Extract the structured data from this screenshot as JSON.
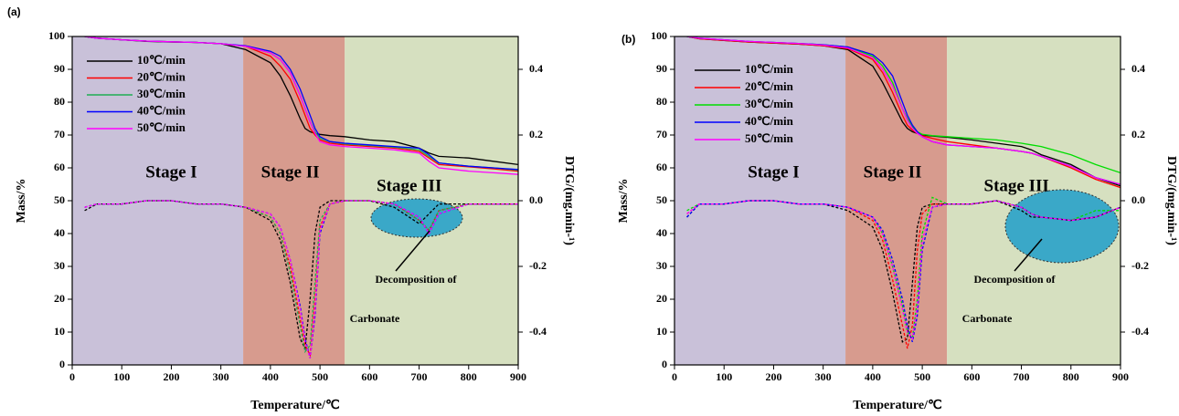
{
  "chart_data": [
    {
      "type": "line",
      "panel_label": "(a)",
      "x_label": "Temperature/℃",
      "y_label": "Mass/%",
      "y2_label": "DTG/(mg.min-¹)",
      "annotation": [
        "Decomposition of",
        "Carbonate"
      ],
      "stages": [
        {
          "label": "Stage I",
          "from": 0,
          "to": 345,
          "color": "#c9c1d9"
        },
        {
          "label": "Stage II",
          "from": 345,
          "to": 550,
          "color": "#d79b8e"
        },
        {
          "label": "Stage III",
          "from": 550,
          "to": 900,
          "color": "#d6e0c0"
        }
      ],
      "xlim": [
        0,
        900
      ],
      "xticks": [
        0,
        100,
        200,
        300,
        400,
        500,
        600,
        700,
        800,
        900
      ],
      "ylim": [
        0,
        100
      ],
      "yticks": [
        0,
        10,
        20,
        30,
        40,
        50,
        60,
        70,
        80,
        90,
        100
      ],
      "y2lim": [
        -0.5,
        0.5
      ],
      "y2ticks": [
        -0.4,
        -0.2,
        {
          "value": 0,
          "label": "0.0"
        },
        0.2,
        0.4
      ],
      "x": [
        25,
        50,
        100,
        150,
        200,
        250,
        300,
        350,
        400,
        420,
        440,
        460,
        470,
        480,
        490,
        500,
        520,
        550,
        600,
        650,
        700,
        720,
        740,
        800,
        850,
        900
      ],
      "series": [
        {
          "name": "10℃/min",
          "color": "#000000",
          "values": [
            100,
            99.5,
            99,
            98.5,
            98.3,
            98.2,
            97.8,
            96,
            92,
            88,
            82,
            75,
            72,
            71,
            70.5,
            70.2,
            69.8,
            69.5,
            68.5,
            68,
            66,
            64.5,
            63.5,
            63,
            62,
            61
          ],
          "dtg": [
            -0.03,
            -0.01,
            -0.01,
            0,
            0,
            -0.01,
            -0.01,
            -0.02,
            -0.06,
            -0.12,
            -0.25,
            -0.42,
            -0.45,
            -0.3,
            -0.1,
            -0.02,
            0,
            0,
            0,
            -0.02,
            -0.07,
            -0.04,
            -0.01,
            -0.01,
            -0.01,
            -0.01
          ]
        },
        {
          "name": "20℃/min",
          "color": "#ff0000",
          "values": [
            100,
            99.5,
            99,
            98.6,
            98.4,
            98.2,
            97.8,
            97,
            94,
            91,
            87,
            80,
            76,
            72,
            70,
            68.5,
            67.5,
            67,
            66.5,
            66,
            65,
            63,
            61,
            60.3,
            59.7,
            59
          ],
          "dtg": [
            -0.02,
            -0.01,
            -0.01,
            0,
            0,
            -0.01,
            -0.01,
            -0.02,
            -0.05,
            -0.1,
            -0.2,
            -0.36,
            -0.44,
            -0.47,
            -0.3,
            -0.08,
            -0.01,
            0,
            0,
            -0.01,
            -0.06,
            -0.09,
            -0.03,
            -0.01,
            -0.01,
            -0.01
          ]
        },
        {
          "name": "30℃/min",
          "color": "#1fae52",
          "values": [
            100,
            99.5,
            99,
            98.6,
            98.4,
            98.2,
            97.8,
            97,
            95,
            93,
            89,
            82,
            78,
            74,
            71,
            69,
            68,
            67.3,
            66.8,
            66.3,
            65.5,
            63.5,
            61.5,
            60.5,
            60,
            59.3
          ],
          "dtg": [
            -0.02,
            -0.01,
            -0.01,
            0,
            0,
            -0.01,
            -0.01,
            -0.02,
            -0.05,
            -0.1,
            -0.22,
            -0.38,
            -0.46,
            -0.44,
            -0.25,
            -0.06,
            -0.01,
            0,
            0,
            -0.01,
            -0.06,
            -0.09,
            -0.03,
            -0.01,
            -0.01,
            -0.01
          ]
        },
        {
          "name": "40℃/min",
          "color": "#0000ff",
          "values": [
            100,
            99.5,
            99,
            98.6,
            98.4,
            98.2,
            97.8,
            97.2,
            95.5,
            94,
            90,
            84,
            80,
            76,
            72,
            69.5,
            68,
            67.5,
            67,
            66.5,
            66,
            64,
            61.5,
            60.5,
            60,
            59.5
          ],
          "dtg": [
            -0.02,
            -0.01,
            -0.01,
            0,
            0,
            -0.01,
            -0.01,
            -0.02,
            -0.04,
            -0.08,
            -0.18,
            -0.32,
            -0.42,
            -0.48,
            -0.35,
            -0.1,
            -0.01,
            0,
            0,
            -0.01,
            -0.05,
            -0.1,
            -0.04,
            -0.01,
            -0.01,
            -0.01
          ]
        },
        {
          "name": "50℃/min",
          "color": "#ff00ff",
          "values": [
            100,
            99.5,
            99,
            98.6,
            98.4,
            98.2,
            97.8,
            97,
            95,
            93,
            89,
            82,
            78,
            74,
            70.5,
            68,
            67,
            66.5,
            66,
            65.5,
            64.5,
            62,
            60,
            59,
            58.5,
            58
          ],
          "dtg": [
            -0.02,
            -0.01,
            -0.01,
            0,
            0,
            -0.01,
            -0.01,
            -0.02,
            -0.04,
            -0.08,
            -0.18,
            -0.33,
            -0.43,
            -0.48,
            -0.33,
            -0.09,
            -0.01,
            0,
            0,
            -0.01,
            -0.05,
            -0.1,
            -0.04,
            -0.01,
            -0.01,
            -0.01
          ]
        }
      ]
    },
    {
      "type": "line",
      "panel_label": "(b)",
      "x_label": "Temperature/℃",
      "y_label": "Mass/%",
      "y2_label": "DTG/(mg.min-¹)",
      "annotation": [
        "Decomposition of",
        "Carbonate"
      ],
      "stages": [
        {
          "label": "Stage I",
          "from": 0,
          "to": 345,
          "color": "#c9c1d9"
        },
        {
          "label": "Stage II",
          "from": 345,
          "to": 550,
          "color": "#d79b8e"
        },
        {
          "label": "Stage III",
          "from": 550,
          "to": 900,
          "color": "#d6e0c0"
        }
      ],
      "xlim": [
        0,
        900
      ],
      "xticks": [
        0,
        100,
        200,
        300,
        400,
        500,
        600,
        700,
        800,
        900
      ],
      "ylim": [
        0,
        100
      ],
      "yticks": [
        0,
        10,
        20,
        30,
        40,
        50,
        60,
        70,
        80,
        90,
        100
      ],
      "y2lim": [
        -0.5,
        0.5
      ],
      "y2ticks": [
        -0.4,
        -0.2,
        {
          "value": 0,
          "label": "0.0"
        },
        0.2,
        0.4
      ],
      "x": [
        25,
        50,
        100,
        150,
        200,
        250,
        300,
        350,
        400,
        420,
        440,
        460,
        470,
        480,
        490,
        500,
        520,
        550,
        600,
        650,
        700,
        720,
        740,
        800,
        850,
        900
      ],
      "series": [
        {
          "name": "10℃/min",
          "color": "#000000",
          "values": [
            100,
            99.3,
            98.8,
            98.3,
            98,
            97.7,
            97.2,
            96,
            91,
            86,
            80,
            74,
            72,
            71,
            70.5,
            70,
            69.7,
            69.3,
            68.5,
            67.5,
            66.5,
            65.5,
            64,
            61,
            57,
            54.5
          ],
          "dtg": [
            -0.05,
            -0.01,
            -0.01,
            0,
            0,
            -0.01,
            -0.01,
            -0.03,
            -0.08,
            -0.15,
            -0.28,
            -0.43,
            -0.42,
            -0.25,
            -0.08,
            -0.02,
            -0.01,
            -0.01,
            -0.01,
            0,
            -0.03,
            -0.05,
            -0.05,
            -0.06,
            -0.05,
            -0.02
          ]
        },
        {
          "name": "20℃/min",
          "color": "#ff0000",
          "values": [
            100,
            99.3,
            98.8,
            98.3,
            98,
            97.7,
            97.2,
            96.3,
            93,
            89,
            83,
            76,
            73,
            71.5,
            70.5,
            69.8,
            69,
            68,
            67,
            66,
            65,
            64.5,
            63.5,
            60,
            56.5,
            54
          ],
          "dtg": [
            -0.04,
            -0.01,
            -0.01,
            0,
            0,
            -0.01,
            -0.01,
            -0.02,
            -0.06,
            -0.12,
            -0.24,
            -0.38,
            -0.45,
            -0.38,
            -0.15,
            -0.04,
            -0.01,
            -0.01,
            -0.01,
            0,
            -0.02,
            -0.04,
            -0.05,
            -0.06,
            -0.05,
            -0.02
          ]
        },
        {
          "name": "30℃/min",
          "color": "#00dd00",
          "values": [
            100,
            99.5,
            99,
            98.5,
            98.2,
            97.9,
            97.5,
            96.8,
            94,
            91,
            86,
            78,
            75,
            72.5,
            71,
            70.2,
            69.8,
            69.5,
            69,
            68.5,
            67.5,
            67,
            66.5,
            64,
            61,
            58.5
          ],
          "dtg": [
            -0.03,
            -0.01,
            -0.01,
            0,
            0,
            -0.01,
            -0.01,
            -0.02,
            -0.05,
            -0.1,
            -0.2,
            -0.32,
            -0.4,
            -0.42,
            -0.3,
            -0.1,
            0.01,
            -0.01,
            -0.01,
            0,
            -0.02,
            -0.04,
            -0.05,
            -0.06,
            -0.03,
            -0.03
          ]
        },
        {
          "name": "40℃/min",
          "color": "#0000ff",
          "values": [
            100,
            99.5,
            99,
            98.5,
            98.2,
            97.9,
            97.5,
            96.8,
            94.5,
            92,
            88,
            80,
            76,
            73,
            71,
            69.5,
            68,
            67,
            66.5,
            66,
            65,
            64.5,
            63.5,
            60.5,
            57,
            55
          ],
          "dtg": [
            -0.05,
            -0.01,
            -0.01,
            0,
            0,
            -0.01,
            -0.01,
            -0.02,
            -0.05,
            -0.09,
            -0.18,
            -0.3,
            -0.38,
            -0.43,
            -0.35,
            -0.15,
            -0.02,
            -0.01,
            -0.01,
            0,
            -0.02,
            -0.04,
            -0.05,
            -0.06,
            -0.05,
            -0.02
          ]
        },
        {
          "name": "50℃/min",
          "color": "#ff00ff",
          "values": [
            100,
            99.5,
            99,
            98.5,
            98.2,
            97.9,
            97.4,
            96.5,
            93.5,
            90,
            85,
            78,
            74.5,
            72,
            70.5,
            69.5,
            68,
            67,
            66.5,
            66,
            65,
            64.5,
            63.5,
            60.5,
            57,
            55
          ],
          "dtg": [
            -0.04,
            -0.01,
            -0.01,
            0,
            0,
            -0.01,
            -0.01,
            -0.02,
            -0.05,
            -0.1,
            -0.2,
            -0.33,
            -0.4,
            -0.42,
            -0.32,
            -0.12,
            -0.02,
            -0.01,
            -0.01,
            0,
            -0.02,
            -0.04,
            -0.05,
            -0.06,
            -0.05,
            -0.02
          ]
        }
      ]
    }
  ]
}
